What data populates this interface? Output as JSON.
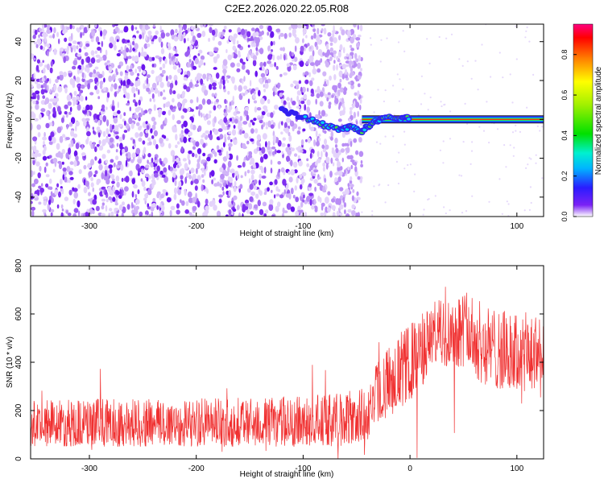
{
  "figure_title": "C2E2.2026.020.22.05.R08",
  "chart_data": [
    {
      "type": "heatmap",
      "xlabel": "Height of straight line (km)",
      "ylabel": "Frequency (Hz)",
      "xlim": [
        -355,
        125
      ],
      "ylim": [
        -50,
        49
      ],
      "xticks": [
        -300,
        -200,
        -100,
        0,
        100
      ],
      "yticks": [
        -40,
        -20,
        0,
        20,
        40
      ],
      "colorbar": {
        "label": "Normalized spectral amplitude",
        "range": [
          0,
          0.95
        ],
        "ticks": [
          0.0,
          0.2,
          0.4,
          0.6,
          0.8
        ]
      },
      "features": {
        "noise_region_x": [
          -355,
          -45
        ],
        "tone_frequency_hz": 0,
        "tone_region_x": [
          -45,
          125
        ],
        "transition_path": [
          {
            "x": -120,
            "y": 5
          },
          {
            "x": -95,
            "y": 0
          },
          {
            "x": -80,
            "y": -3
          },
          {
            "x": -65,
            "y": -5
          },
          {
            "x": -55,
            "y": -4
          },
          {
            "x": -45,
            "y": -6
          },
          {
            "x": -35,
            "y": -2
          },
          {
            "x": -25,
            "y": 1
          },
          {
            "x": -10,
            "y": 0
          },
          {
            "x": 0,
            "y": 1
          }
        ]
      },
      "grid": false
    },
    {
      "type": "line",
      "xlabel": "Height of straight line (km)",
      "ylabel": "SNR (10 * v/v)",
      "xlim": [
        -355,
        125
      ],
      "ylim": [
        0,
        800
      ],
      "xticks": [
        -300,
        -200,
        -100,
        0,
        100
      ],
      "yticks": [
        0,
        200,
        400,
        600,
        800
      ],
      "color": "#f03030",
      "envelope": [
        {
          "x": -355,
          "low": 50,
          "high": 240
        },
        {
          "x": -300,
          "low": 50,
          "high": 250
        },
        {
          "x": -200,
          "low": 50,
          "high": 250
        },
        {
          "x": -100,
          "low": 50,
          "high": 260
        },
        {
          "x": -60,
          "low": 50,
          "high": 280
        },
        {
          "x": -40,
          "low": 60,
          "high": 300
        },
        {
          "x": -30,
          "low": 150,
          "high": 420
        },
        {
          "x": -10,
          "low": 200,
          "high": 520
        },
        {
          "x": 10,
          "low": 280,
          "high": 600
        },
        {
          "x": 20,
          "low": 380,
          "high": 650
        },
        {
          "x": 50,
          "low": 380,
          "high": 700
        },
        {
          "x": 70,
          "low": 300,
          "high": 640
        },
        {
          "x": 100,
          "low": 270,
          "high": 600
        },
        {
          "x": 125,
          "low": 250,
          "high": 620
        }
      ],
      "grid": false
    }
  ]
}
